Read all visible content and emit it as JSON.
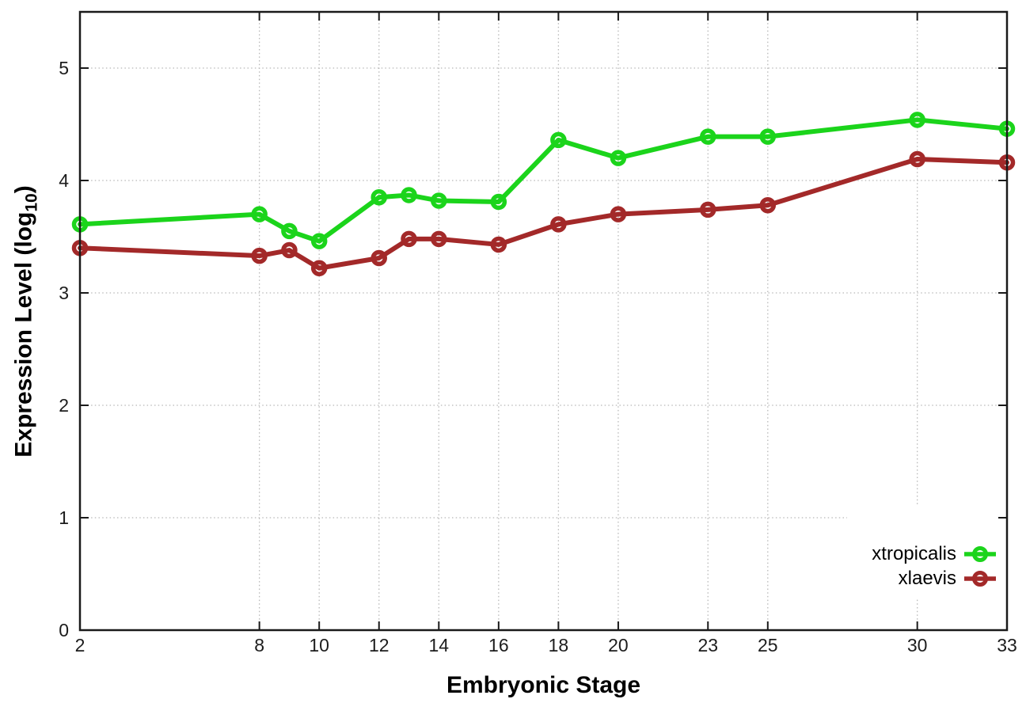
{
  "chart_data": {
    "type": "line",
    "title": "",
    "xlabel": "Embryonic Stage",
    "ylabel": "Expression Level (log10)",
    "ylabel_parts": {
      "pre": "Expression Level (log",
      "sub": "10",
      "post": ")"
    },
    "x": [
      2,
      8,
      9,
      10,
      12,
      13,
      14,
      16,
      18,
      20,
      23,
      25,
      30,
      33
    ],
    "xticks": [
      2,
      8,
      10,
      12,
      14,
      16,
      18,
      20,
      23,
      25,
      30,
      33
    ],
    "yticks": [
      0,
      1,
      2,
      3,
      4,
      5
    ],
    "xlim": [
      2,
      33
    ],
    "ylim": [
      0,
      5.5
    ],
    "grid": true,
    "grid_style": "dotted",
    "legend_position": "inside-bottom-right",
    "series": [
      {
        "name": "xtropicalis",
        "color": "#1bd41b",
        "marker": "open-circle",
        "values": [
          3.61,
          3.7,
          3.55,
          3.46,
          3.85,
          3.87,
          3.82,
          3.81,
          4.36,
          4.2,
          4.39,
          4.39,
          4.54,
          4.46
        ]
      },
      {
        "name": "xlaevis",
        "color": "#a32929",
        "marker": "open-circle",
        "values": [
          3.4,
          3.33,
          3.38,
          3.22,
          3.31,
          3.48,
          3.48,
          3.43,
          3.61,
          3.7,
          3.74,
          3.78,
          4.19,
          4.16
        ]
      }
    ],
    "colors": {
      "axis": "#1a1a1a",
      "grid": "#b8b8b8",
      "tick_text": "#1c1c1c",
      "background": "#ffffff"
    }
  }
}
